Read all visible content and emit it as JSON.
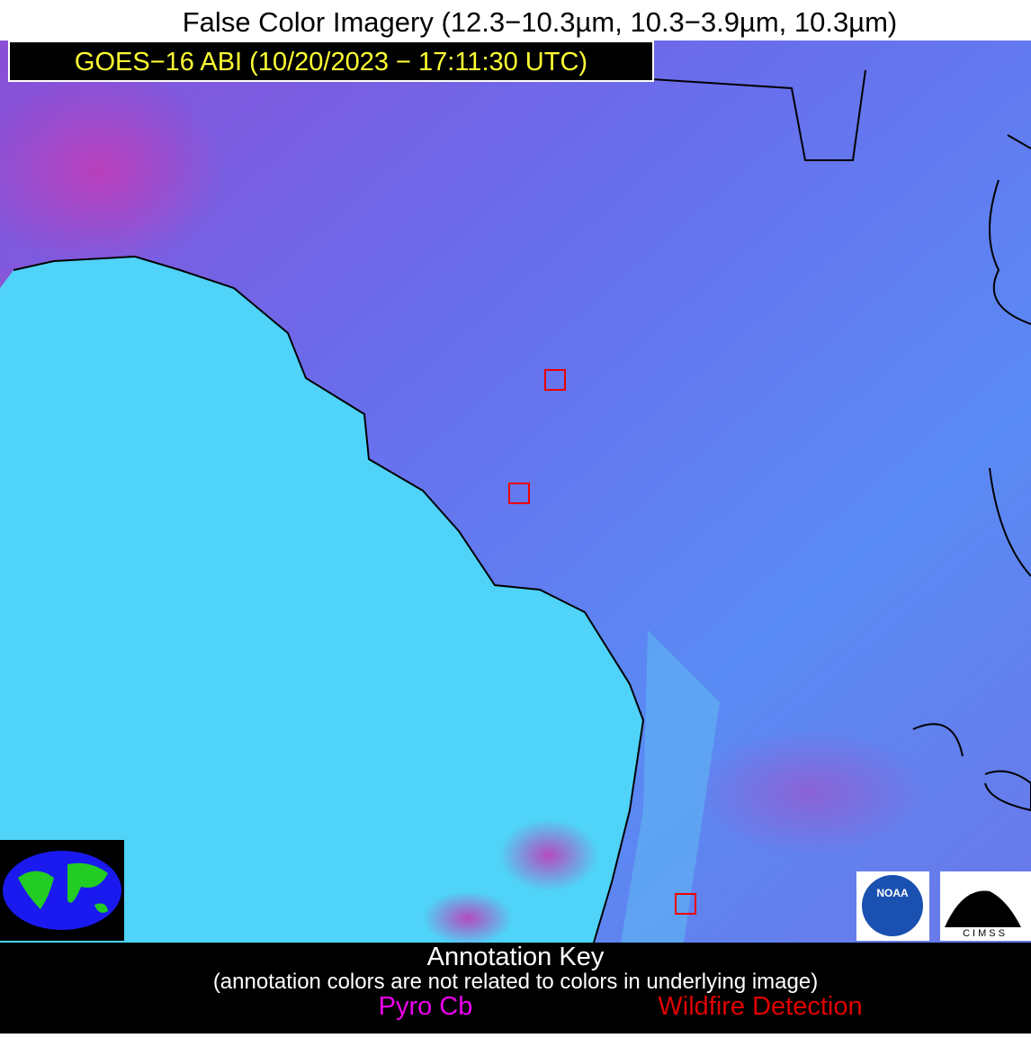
{
  "header": {
    "title": "False Color Imagery (12.3−10.3µm, 10.3−3.9µm, 10.3µm)",
    "subtitle": "GOES−16 ABI (10/20/2023 − 17:11:30 UTC)"
  },
  "logos": {
    "noaa": "NOAA",
    "cimss": "CIMSS"
  },
  "annotation_key": {
    "title": "Annotation Key",
    "note": "(annotation colors are not related to colors in underlying image)",
    "items": [
      "Pyro Cb",
      "Wildfire Detection"
    ]
  }
}
